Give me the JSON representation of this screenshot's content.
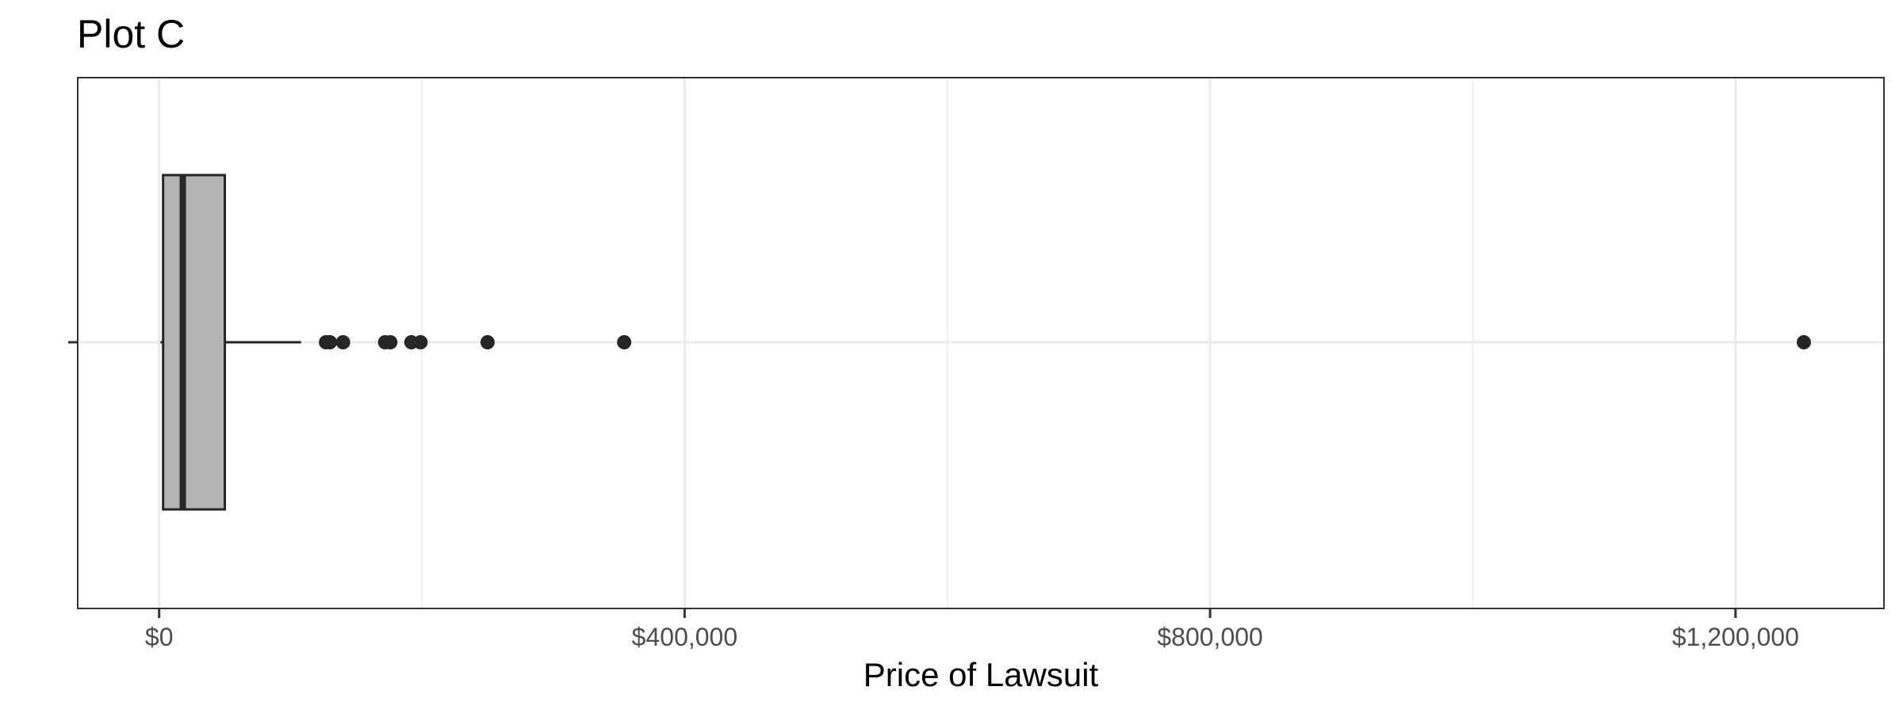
{
  "chart_data": {
    "type": "boxplot",
    "title": "Plot C",
    "xlabel": "Price of Lawsuit",
    "ylabel": "",
    "x_axis": {
      "ticks": [
        0,
        400000,
        800000,
        1200000
      ],
      "tick_labels": [
        "$0",
        "$400,000",
        "$800,000",
        "$1,200,000"
      ],
      "minor_gridlines": [
        200000,
        600000,
        1000000
      ],
      "range": [
        -62000,
        1313000
      ]
    },
    "grid": true,
    "box": {
      "whisker_low": 1000,
      "q1": 3000,
      "median": 18000,
      "q3": 50000,
      "whisker_high": 108000
    },
    "outliers": [
      127000,
      130000,
      140000,
      172000,
      176000,
      192000,
      199000,
      250000,
      354000,
      1252000
    ],
    "colors": {
      "box_fill": "#b3b3b3",
      "line": "#262626",
      "grid": "#ebebeb",
      "panel_border": "#333333"
    }
  }
}
